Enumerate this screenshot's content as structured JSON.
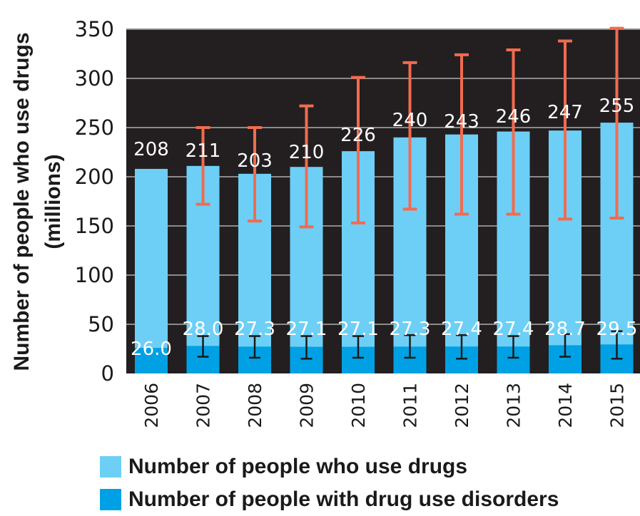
{
  "chart_data": {
    "type": "bar",
    "ylabel_line1": "Number of people who use drugs",
    "ylabel_line2": "(millions)",
    "ylim": [
      0,
      350
    ],
    "yticks": [
      0,
      50,
      100,
      150,
      200,
      250,
      300,
      350
    ],
    "grid": true,
    "legend_position": "bottom",
    "categories": [
      "2006",
      "2007",
      "2008",
      "2009",
      "2010",
      "2011",
      "2012",
      "2013",
      "2014",
      "2015"
    ],
    "series": [
      {
        "name": "Number of people who use drugs",
        "color": "#6dcff6",
        "values": [
          208,
          211,
          203,
          210,
          226,
          240,
          243,
          246,
          247,
          255
        ],
        "labels": [
          "208",
          "211",
          "203",
          "210",
          "226",
          "240",
          "243",
          "246",
          "247",
          "255"
        ],
        "error_low": [
          null,
          172,
          155,
          149,
          153,
          167,
          162,
          162,
          157,
          158
        ],
        "error_high": [
          null,
          250,
          250,
          272,
          301,
          316,
          324,
          329,
          338,
          351
        ],
        "error_color": "#f26b4f"
      },
      {
        "name": "Number of people with drug use disorders",
        "color": "#00a1e4",
        "values": [
          26.0,
          28.0,
          27.3,
          27.1,
          27.1,
          27.3,
          27.4,
          27.4,
          28.7,
          29.5
        ],
        "labels": [
          "26.0",
          "28.0",
          "27.3",
          "27.1",
          "27.1",
          "27.3",
          "27.4",
          "27.4",
          "28.7",
          "29.5"
        ],
        "error_low": [
          null,
          17,
          16,
          15,
          16,
          16,
          15,
          16,
          17,
          15
        ],
        "error_high": [
          null,
          38,
          38,
          38,
          38,
          39,
          39,
          38,
          40,
          43
        ],
        "error_color": "#1a1a1a"
      }
    ],
    "background_color": "#231f20",
    "grid_color": "#8a8a8a"
  }
}
